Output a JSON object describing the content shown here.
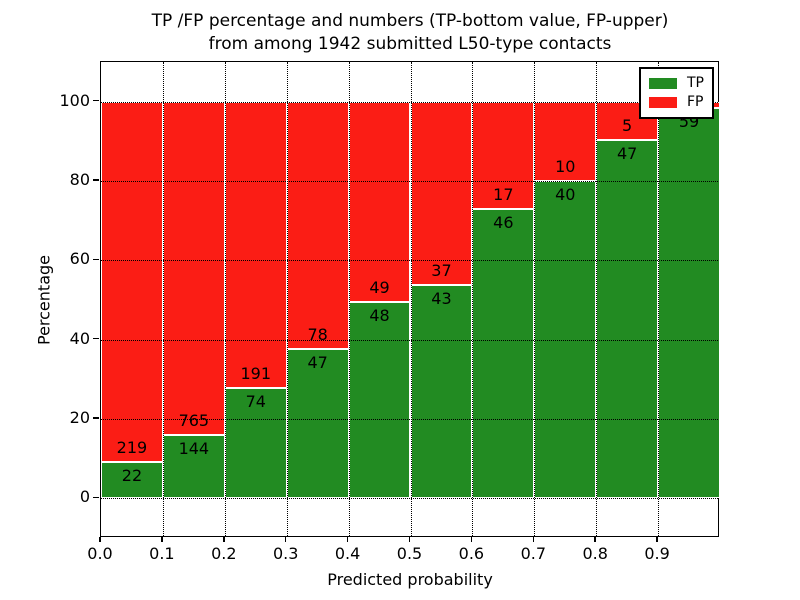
{
  "figure": {
    "title_line1": "TP /FP percentage and numbers (TP-bottom value, FP-upper)",
    "title_line2": "from among 1942 submitted L50-type contacts"
  },
  "chart_data": {
    "type": "bar",
    "stacked": true,
    "normalized_to_percent": true,
    "title": "TP /FP percentage and numbers (TP-bottom value, FP-upper) from among 1942 submitted L50-type contacts",
    "xlabel": "Predicted probability",
    "ylabel": "Percentage",
    "xlim": [
      0.0,
      1.0
    ],
    "ylim": [
      -10,
      110
    ],
    "bin_width": 0.1,
    "total_submitted": 1942,
    "x_tick_labels": [
      "0.0",
      "0.1",
      "0.2",
      "0.3",
      "0.4",
      "0.5",
      "0.6",
      "0.7",
      "0.8",
      "0.9"
    ],
    "y_ticks": [
      0,
      20,
      40,
      60,
      80,
      100
    ],
    "grid": {
      "style": "dotted",
      "color": "#000000"
    },
    "categories": [
      "0.0-0.1",
      "0.1-0.2",
      "0.2-0.3",
      "0.3-0.4",
      "0.4-0.5",
      "0.5-0.6",
      "0.6-0.7",
      "0.7-0.8",
      "0.8-0.9",
      "0.9-1.0"
    ],
    "series": [
      {
        "name": "TP",
        "color": "#228B22",
        "counts": [
          22,
          144,
          74,
          47,
          48,
          43,
          46,
          40,
          47,
          59
        ]
      },
      {
        "name": "FP",
        "color": "#FB1D15",
        "counts": [
          219,
          765,
          191,
          78,
          49,
          37,
          17,
          10,
          5,
          1
        ]
      }
    ],
    "last_bin_fp_label_hidden_behind_legend": true,
    "legend": {
      "position": "upper right",
      "entries": [
        {
          "label": "TP",
          "color": "#228B22"
        },
        {
          "label": "FP",
          "color": "#FB1D15"
        }
      ]
    }
  }
}
